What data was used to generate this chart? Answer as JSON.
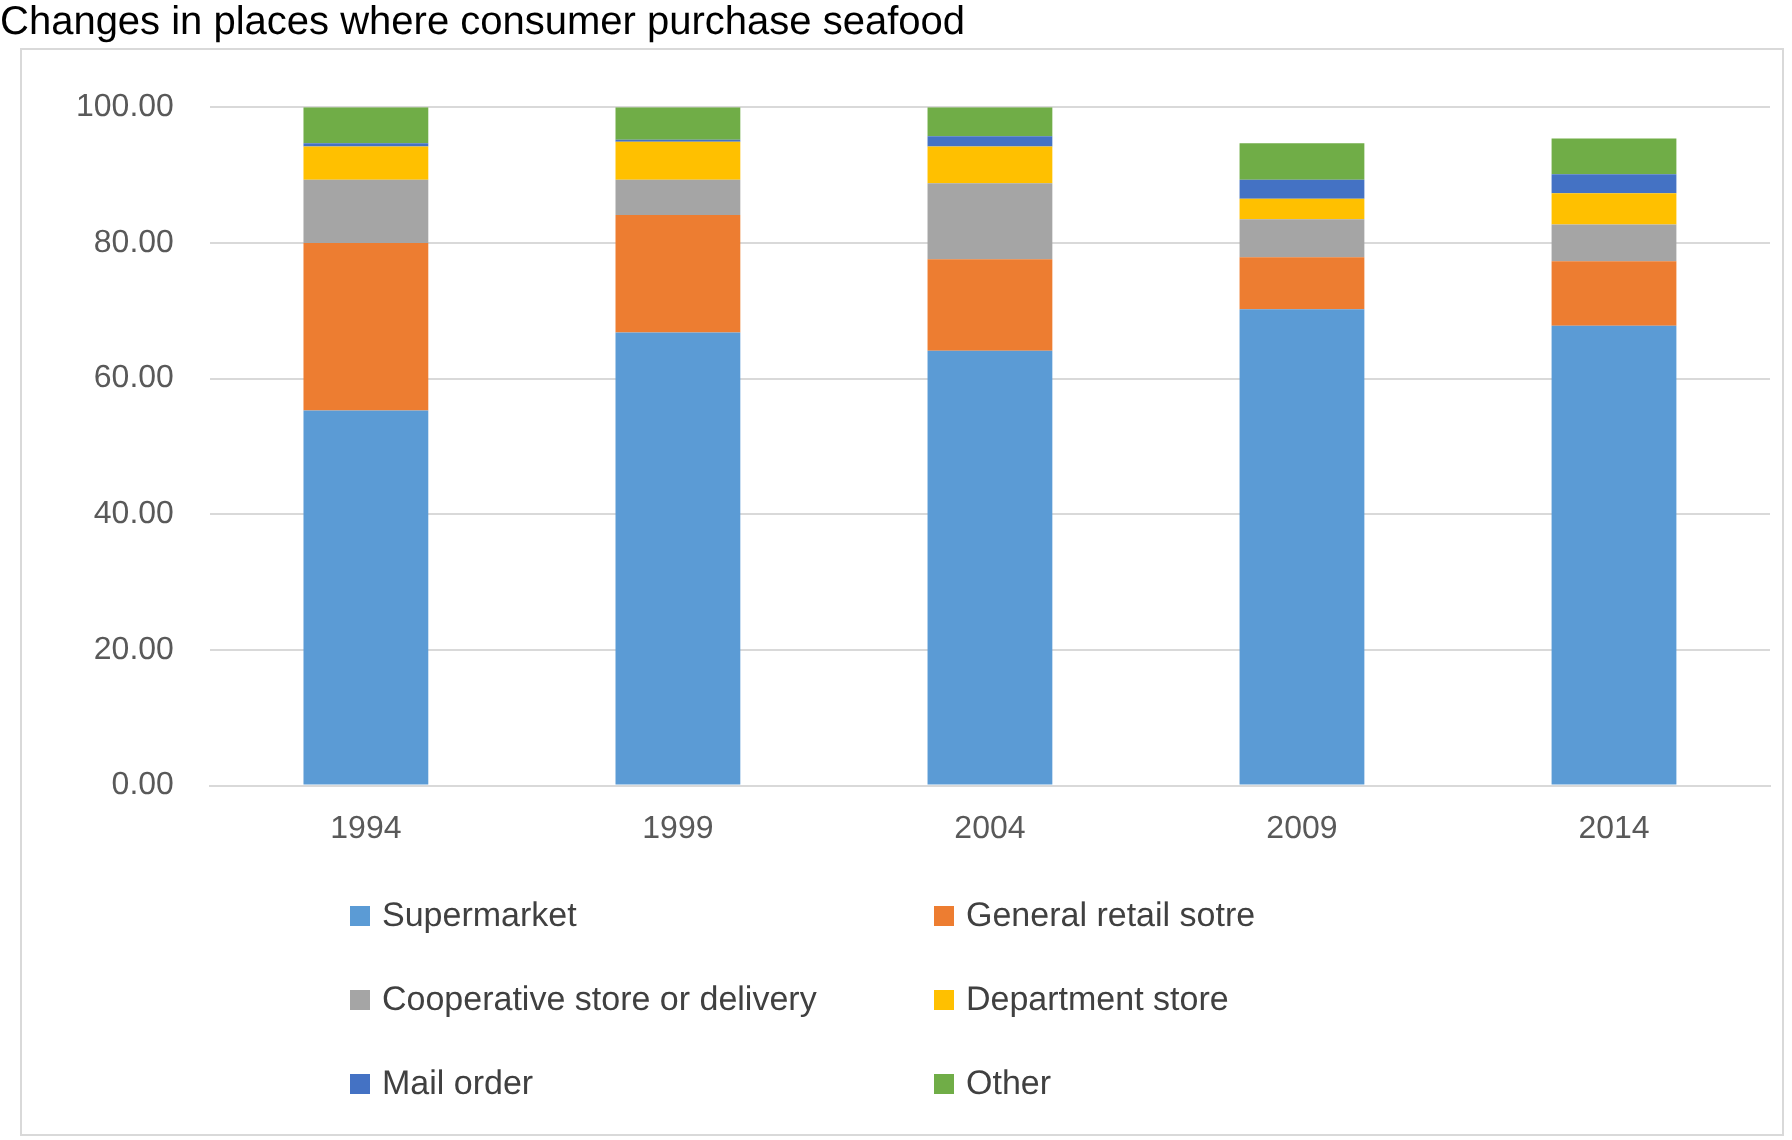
{
  "chart_data": {
    "type": "bar",
    "title": "Changes in places where consumer purchase seafood",
    "categories": [
      "1994",
      "1999",
      "2004",
      "2009",
      "2014"
    ],
    "stacked": true,
    "ylim": [
      0,
      100
    ],
    "yticks": [
      {
        "value": 0,
        "label": "0.00"
      },
      {
        "value": 20,
        "label": "20.00"
      },
      {
        "value": 40,
        "label": "40.00"
      },
      {
        "value": 60,
        "label": "60.00"
      },
      {
        "value": 80,
        "label": "80.00"
      },
      {
        "value": 100,
        "label": "100.00"
      }
    ],
    "grid": "y",
    "legend": "bottom",
    "series": [
      {
        "name": "Supermarket",
        "color": "#5b9bd5",
        "values": [
          55.3,
          66.8,
          64.1,
          70.2,
          67.8
        ]
      },
      {
        "name": "General retail sotre",
        "color": "#ed7d31",
        "values": [
          24.7,
          17.3,
          13.5,
          7.7,
          9.5
        ]
      },
      {
        "name": "Cooperative store or delivery",
        "color": "#a5a5a5",
        "values": [
          9.3,
          5.2,
          11.2,
          5.6,
          5.4
        ]
      },
      {
        "name": "Department store",
        "color": "#ffc000",
        "values": [
          4.9,
          5.6,
          5.4,
          3.0,
          4.6
        ]
      },
      {
        "name": "Mail order",
        "color": "#4472c4",
        "values": [
          0.5,
          0.3,
          1.5,
          2.8,
          2.8
        ]
      },
      {
        "name": "Other",
        "color": "#70ad47",
        "values": [
          5.3,
          4.8,
          4.3,
          5.4,
          5.3
        ]
      }
    ]
  }
}
